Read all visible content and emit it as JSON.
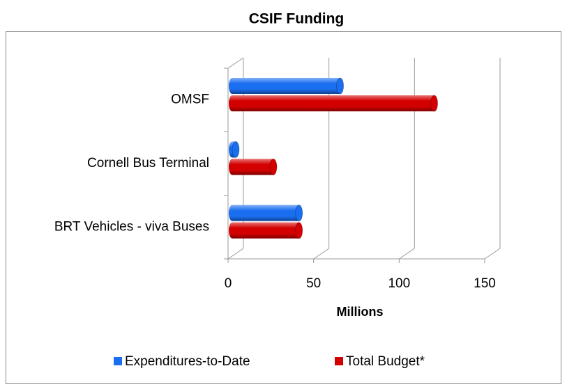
{
  "chart_data": {
    "type": "bar",
    "orientation": "horizontal",
    "title": "CSIF Funding",
    "categories": [
      "OMSF",
      "Cornell Bus Terminal",
      "BRT Vehicles - viva Buses"
    ],
    "series": [
      {
        "name": "Expenditures-to-Date",
        "color": "#1a6ef0",
        "values": [
          63,
          2,
          39
        ]
      },
      {
        "name": "Total Budget*",
        "color": "#d40000",
        "values": [
          118,
          24,
          39
        ]
      }
    ],
    "xlabel": "Millions",
    "xlim": [
      0,
      150
    ],
    "xticks": [
      0,
      50,
      100,
      150
    ],
    "grid": true,
    "legend": "bottom"
  }
}
